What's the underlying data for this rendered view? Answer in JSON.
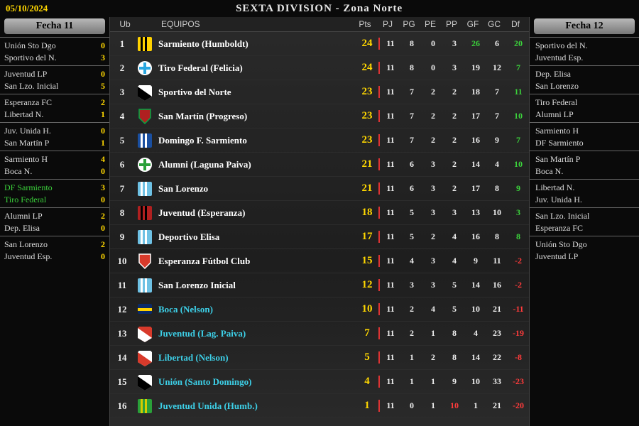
{
  "header": {
    "date": "05/10/2024",
    "title": "SEXTA DIVISION - Zona Norte"
  },
  "left": {
    "title": "Fecha 11",
    "matches": [
      {
        "home": "Unión Sto Dgo",
        "hs": 0,
        "away": "Sportivo del N.",
        "as": 3
      },
      {
        "home": "Juventud LP",
        "hs": 0,
        "away": "San Lzo. Inicial",
        "as": 5
      },
      {
        "home": "Esperanza FC",
        "hs": 2,
        "away": "Libertad N.",
        "as": 1
      },
      {
        "home": "Juv. Unida H.",
        "hs": 0,
        "away": "San Martín P",
        "as": 1
      },
      {
        "home": "Sarmiento H",
        "hs": 4,
        "away": "Boca N.",
        "as": 0
      },
      {
        "home": "DF Sarmiento",
        "hs": 3,
        "away": "Tiro Federal",
        "as": 0,
        "hl": true
      },
      {
        "home": "Alumni LP",
        "hs": 2,
        "away": "Dep. Elisa",
        "as": 0
      },
      {
        "home": "San Lorenzo",
        "hs": 2,
        "away": "Juventud Esp.",
        "as": 0
      }
    ]
  },
  "right": {
    "title": "Fecha 12",
    "fixtures": [
      [
        "Sportivo del N.",
        "Juventud Esp."
      ],
      [
        "Dep. Elisa",
        "San Lorenzo"
      ],
      [
        "Tiro Federal",
        "Alumni LP"
      ],
      [
        "Sarmiento H",
        "DF Sarmiento"
      ],
      [
        "San Martín P",
        "Boca N."
      ],
      [
        "Libertad N.",
        "Juv. Unida H."
      ],
      [
        "San Lzo. Inicial",
        "Esperanza FC"
      ],
      [
        "Unión Sto Dgo",
        "Juventud LP"
      ]
    ]
  },
  "table": {
    "columns": {
      "ub": "Ub",
      "eq": "EQUIPOS",
      "pts": "Pts",
      "pj": "PJ",
      "pg": "PG",
      "pe": "PE",
      "pp": "PP",
      "gf": "GF",
      "gc": "GC",
      "df": "Df"
    },
    "rows": [
      {
        "pos": 1,
        "name": "Sarmiento (Humboldt)",
        "pts": 24,
        "pj": 11,
        "pg": 8,
        "pe": 0,
        "pp": 3,
        "gf": 26,
        "gc": 6,
        "df": 20,
        "crest": {
          "c1": "#ffd200",
          "c2": "#000000",
          "shape": "stripes"
        },
        "gfHL": true,
        "gcHL": true
      },
      {
        "pos": 2,
        "name": "Tiro Federal (Felicia)",
        "pts": 24,
        "pj": 11,
        "pg": 8,
        "pe": 0,
        "pp": 3,
        "gf": 19,
        "gc": 12,
        "df": 7,
        "crest": {
          "c1": "#2aa7e0",
          "c2": "#ffffff",
          "shape": "cross"
        }
      },
      {
        "pos": 3,
        "name": "Sportivo del Norte",
        "pts": 23,
        "pj": 11,
        "pg": 7,
        "pe": 2,
        "pp": 2,
        "gf": 18,
        "gc": 7,
        "df": 11,
        "crest": {
          "c1": "#ffffff",
          "c2": "#000000",
          "shape": "diag"
        }
      },
      {
        "pos": 4,
        "name": "San Martín (Progreso)",
        "pts": 23,
        "pj": 11,
        "pg": 7,
        "pe": 2,
        "pp": 2,
        "gf": 17,
        "gc": 7,
        "df": 10,
        "crest": {
          "c1": "#b02020",
          "c2": "#0a4",
          "shape": "shield"
        }
      },
      {
        "pos": 5,
        "name": "Domingo F. Sarmiento",
        "pts": 23,
        "pj": 11,
        "pg": 7,
        "pe": 2,
        "pp": 2,
        "gf": 16,
        "gc": 9,
        "df": 7,
        "crest": {
          "c1": "#1a4fa0",
          "c2": "#ffffff",
          "shape": "stripes"
        }
      },
      {
        "pos": 6,
        "name": "Alumni (Laguna Paiva)",
        "pts": 21,
        "pj": 11,
        "pg": 6,
        "pe": 3,
        "pp": 2,
        "gf": 14,
        "gc": 4,
        "df": 10,
        "crest": {
          "c1": "#2aa039",
          "c2": "#ffffff",
          "shape": "cross"
        },
        "gcHL": true
      },
      {
        "pos": 7,
        "name": "San Lorenzo",
        "pts": 21,
        "pj": 11,
        "pg": 6,
        "pe": 3,
        "pp": 2,
        "gf": 17,
        "gc": 8,
        "df": 9,
        "crest": {
          "c1": "#6ec1e4",
          "c2": "#ffffff",
          "shape": "stripes"
        }
      },
      {
        "pos": 8,
        "name": "Juventud (Esperanza)",
        "pts": 18,
        "pj": 11,
        "pg": 5,
        "pe": 3,
        "pp": 3,
        "gf": 13,
        "gc": 10,
        "df": 3,
        "crest": {
          "c1": "#b02020",
          "c2": "#000000",
          "shape": "stripes"
        }
      },
      {
        "pos": 9,
        "name": "Deportivo Elisa",
        "pts": 17,
        "pj": 11,
        "pg": 5,
        "pe": 2,
        "pp": 4,
        "gf": 16,
        "gc": 8,
        "df": 8,
        "crest": {
          "c1": "#6ec1e4",
          "c2": "#ffffff",
          "shape": "stripes"
        }
      },
      {
        "pos": 10,
        "name": "Esperanza Fútbol Club",
        "pts": 15,
        "pj": 11,
        "pg": 4,
        "pe": 3,
        "pp": 4,
        "gf": 9,
        "gc": 11,
        "df": -2,
        "crest": {
          "c1": "#d83a2b",
          "c2": "#ffffff",
          "shape": "shield"
        }
      },
      {
        "pos": 11,
        "name": "San Lorenzo Inicial",
        "pts": 12,
        "pj": 11,
        "pg": 3,
        "pe": 3,
        "pp": 5,
        "gf": 14,
        "gc": 16,
        "df": -2,
        "crest": {
          "c1": "#6ec1e4",
          "c2": "#ffffff",
          "shape": "stripes"
        }
      },
      {
        "pos": 12,
        "name": "Boca (Nelson)",
        "pts": 10,
        "pj": 11,
        "pg": 2,
        "pe": 4,
        "pp": 5,
        "gf": 10,
        "gc": 21,
        "df": -11,
        "crest": {
          "c1": "#0a2a6a",
          "c2": "#ffd200",
          "shape": "half"
        },
        "cyan": true
      },
      {
        "pos": 13,
        "name": "Juventud (Lag. Paiva)",
        "pts": 7,
        "pj": 11,
        "pg": 2,
        "pe": 1,
        "pp": 8,
        "gf": 4,
        "gc": 23,
        "df": -19,
        "crest": {
          "c1": "#d83a2b",
          "c2": "#ffffff",
          "shape": "diag"
        },
        "cyan": true
      },
      {
        "pos": 14,
        "name": "Libertad (Nelson)",
        "pts": 5,
        "pj": 11,
        "pg": 1,
        "pe": 2,
        "pp": 8,
        "gf": 14,
        "gc": 22,
        "df": -8,
        "crest": {
          "c1": "#ffffff",
          "c2": "#d83a2b",
          "shape": "diag"
        },
        "cyan": true
      },
      {
        "pos": 15,
        "name": "Unión (Santo Domingo)",
        "pts": 4,
        "pj": 11,
        "pg": 1,
        "pe": 1,
        "pp": 9,
        "gf": 10,
        "gc": 33,
        "df": -23,
        "crest": {
          "c1": "#ffffff",
          "c2": "#000000",
          "shape": "diag"
        },
        "cyan": true
      },
      {
        "pos": 16,
        "name": "Juventud Unida (Humb.)",
        "pts": 1,
        "pj": 11,
        "pg": 0,
        "pe": 1,
        "pp": 10,
        "gf": 1,
        "gc": 21,
        "df": -20,
        "crest": {
          "c1": "#2aa039",
          "c2": "#d6cc00",
          "shape": "stripes"
        },
        "cyan": true,
        "ppHL": true
      }
    ]
  }
}
